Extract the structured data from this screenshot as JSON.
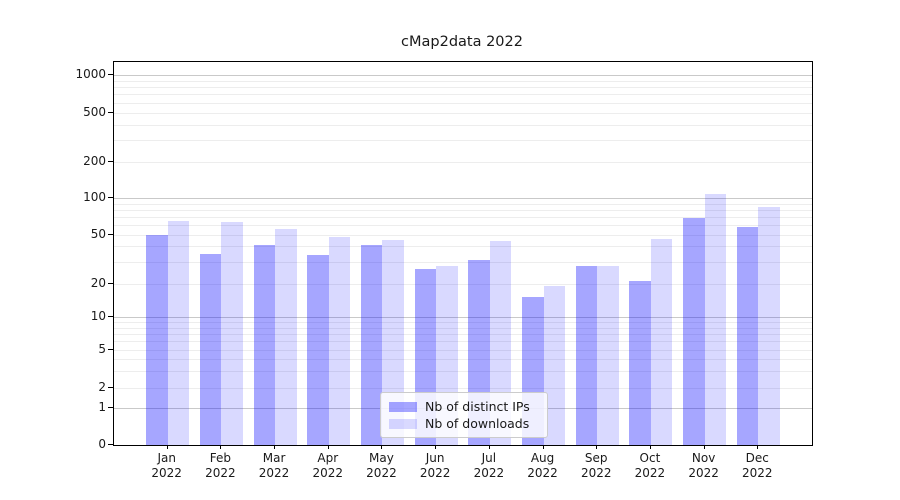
{
  "title": "cMap2data 2022",
  "chart_data": {
    "type": "bar",
    "title": "cMap2data 2022",
    "categories": [
      "Jan",
      "Feb",
      "Mar",
      "Apr",
      "May",
      "Jun",
      "Jul",
      "Aug",
      "Sep",
      "Oct",
      "Nov",
      "Dec"
    ],
    "year_label": "2022",
    "series": [
      {
        "name": "Nb of distinct IPs",
        "color": "rgba(0,0,255,0.35)",
        "values": [
          50,
          35,
          41,
          34,
          41,
          26,
          31,
          15,
          28,
          21,
          69,
          58
        ]
      },
      {
        "name": "Nb of downloads",
        "color": "rgba(0,0,255,0.15)",
        "values": [
          65,
          63,
          56,
          48,
          45,
          28,
          44,
          19,
          28,
          46,
          108,
          84
        ]
      }
    ],
    "yticks": [
      0,
      1,
      2,
      5,
      10,
      20,
      50,
      100,
      200,
      500,
      1000
    ],
    "yscale": "symlog",
    "ylim": [
      0,
      1300
    ],
    "xlabel": "",
    "ylabel": "",
    "grid": "both",
    "legend_position": "lower center"
  },
  "colors": {
    "major_grid": "#c9c9c9",
    "minor_grid": "#ededed",
    "spine": "#000000",
    "text": "#1a1a1a"
  }
}
